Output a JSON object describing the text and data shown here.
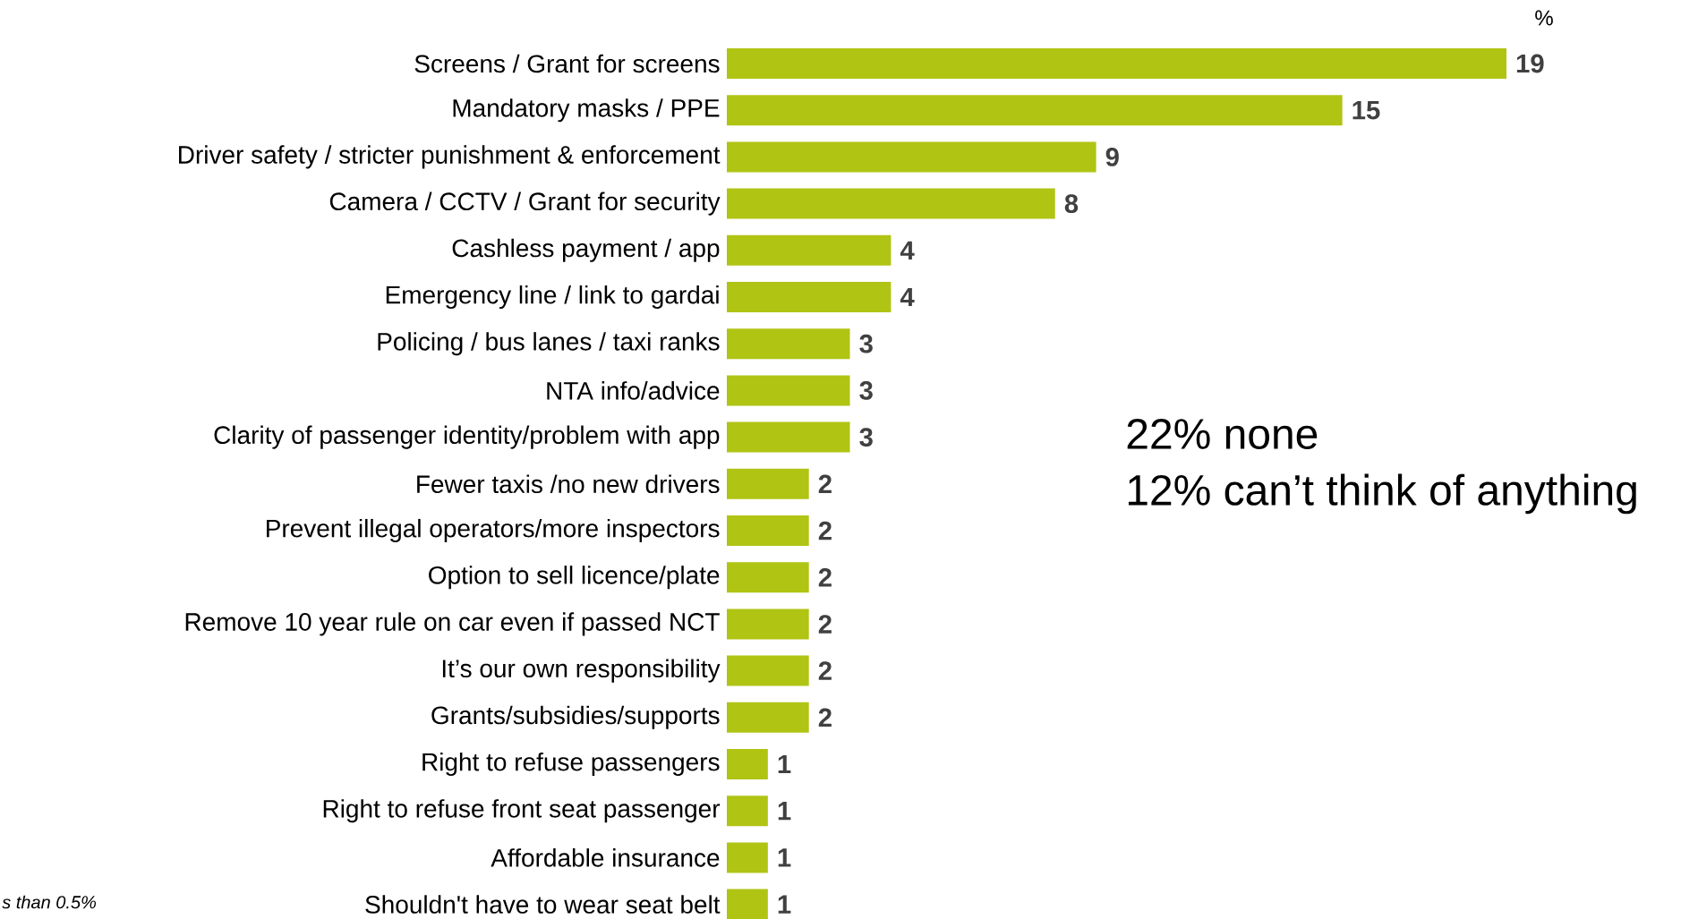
{
  "chart_data": {
    "type": "bar",
    "orientation": "horizontal",
    "data_labels": true,
    "color": "#b0c414",
    "categories": [
      "Screens / Grant for screens",
      "Mandatory masks / PPE",
      "Driver safety / stricter punishment & enforcement",
      "Camera / CCTV / Grant for security",
      "Cashless payment / app",
      "Emergency line / link to gardai",
      "Policing / bus lanes / taxi ranks",
      "NTA info/advice",
      "Clarity of passenger identity/problem with app",
      "Fewer taxis /no new drivers",
      "Prevent illegal operators/more inspectors",
      "Option to sell licence/plate",
      "Remove 10 year rule on car even if passed NCT",
      "It’s our own responsibility",
      "Grants/subsidies/supports",
      "Right to refuse passengers",
      "Right to refuse front seat passenger",
      "Affordable insurance",
      "Shouldn't have to wear seat belt"
    ],
    "values": [
      19,
      15,
      9,
      8,
      4,
      4,
      3,
      3,
      3,
      2,
      2,
      2,
      2,
      2,
      2,
      1,
      1,
      1,
      1
    ],
    "annotations": [
      "%",
      "22% none",
      "12% can’t think of anything",
      "s than 0.5%"
    ]
  }
}
